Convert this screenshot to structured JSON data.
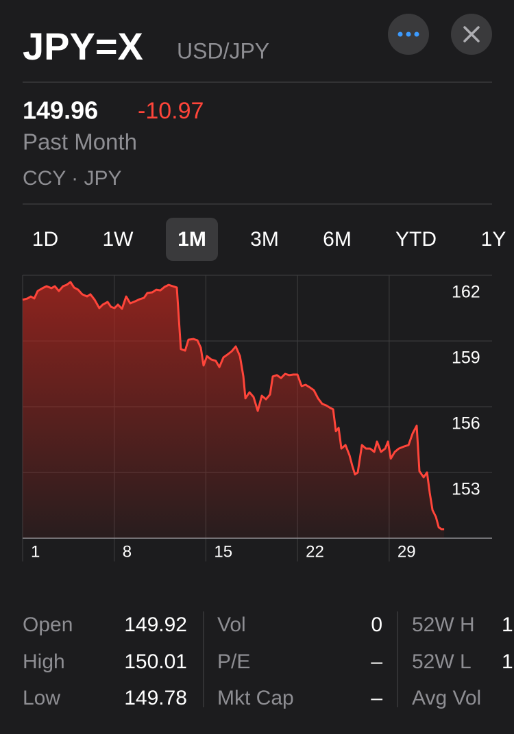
{
  "header": {
    "symbol": "JPY=X",
    "name": "USD/JPY",
    "price": "149.96",
    "change": "-10.97",
    "period": "Past Month",
    "exchange": "CCY · JPY"
  },
  "tabs": [
    {
      "label": "1D"
    },
    {
      "label": "1W"
    },
    {
      "label": "1M",
      "selected": true
    },
    {
      "label": "3M"
    },
    {
      "label": "6M"
    },
    {
      "label": "YTD"
    },
    {
      "label": "1Y"
    }
  ],
  "chart_data": {
    "type": "line",
    "color": "#ff453a",
    "grid": true,
    "xlim": [
      1,
      36.86
    ],
    "xticks": [
      1,
      8,
      15,
      22,
      29
    ],
    "ylim": [
      150,
      162
    ],
    "yticks": [
      153,
      156,
      159,
      162
    ],
    "x": [
      1.0,
      1.37,
      1.63,
      1.89,
      2.15,
      2.52,
      2.83,
      3.2,
      3.46,
      3.77,
      4.09,
      4.35,
      4.66,
      4.93,
      5.24,
      5.55,
      5.92,
      6.18,
      6.5,
      6.86,
      7.12,
      7.49,
      7.75,
      8.02,
      8.28,
      8.59,
      8.91,
      9.22,
      9.59,
      9.95,
      10.27,
      10.53,
      10.9,
      11.21,
      11.52,
      11.84,
      12.15,
      12.47,
      12.78,
      13.09,
      13.41,
      13.67,
      14.04,
      14.35,
      14.61,
      14.82,
      15.08,
      15.4,
      15.76,
      16.03,
      16.34,
      16.65,
      16.97,
      17.28,
      17.6,
      17.86,
      18.02,
      18.33,
      18.64,
      18.96,
      19.27,
      19.59,
      19.9,
      20.11,
      20.42,
      20.74,
      21.05,
      21.37,
      21.68,
      21.99,
      22.31,
      22.62,
      22.94,
      23.25,
      23.57,
      23.88,
      24.19,
      24.51,
      24.72,
      24.93,
      25.14,
      25.35,
      25.66,
      25.97,
      26.18,
      26.39,
      26.6,
      26.92,
      27.23,
      27.54,
      27.86,
      28.07,
      28.38,
      28.7,
      28.91,
      29.12,
      29.43,
      29.74,
      30.16,
      30.48,
      30.79,
      31.1,
      31.31,
      31.63,
      31.89,
      32.1,
      32.31,
      32.57,
      32.78,
      32.99,
      33.2
    ],
    "values": [
      160.88,
      160.94,
      161.03,
      160.94,
      161.28,
      161.41,
      161.5,
      161.41,
      161.5,
      161.28,
      161.5,
      161.56,
      161.69,
      161.44,
      161.34,
      161.13,
      161.03,
      161.13,
      160.88,
      160.5,
      160.66,
      160.78,
      160.56,
      160.5,
      160.66,
      160.47,
      161.03,
      160.72,
      160.81,
      160.91,
      160.97,
      161.19,
      161.22,
      161.34,
      161.31,
      161.47,
      161.56,
      161.5,
      161.44,
      158.63,
      158.56,
      159.06,
      159.09,
      159.03,
      158.69,
      157.88,
      158.31,
      158.16,
      158.09,
      157.81,
      158.25,
      158.38,
      158.53,
      158.75,
      158.31,
      157.38,
      156.38,
      156.66,
      156.44,
      155.81,
      156.5,
      156.34,
      156.56,
      157.38,
      157.44,
      157.31,
      157.5,
      157.44,
      157.47,
      157.47,
      156.94,
      157.0,
      156.88,
      156.75,
      156.38,
      156.13,
      156.06,
      155.94,
      155.88,
      154.88,
      155.03,
      154.09,
      154.25,
      153.78,
      153.31,
      152.91,
      153.0,
      154.25,
      154.09,
      154.09,
      153.94,
      154.41,
      153.94,
      154.09,
      154.41,
      153.63,
      153.94,
      154.09,
      154.19,
      154.25,
      154.78,
      155.13,
      153.06,
      152.78,
      153.0,
      152.06,
      151.28,
      150.97,
      150.5,
      150.41,
      150.41
    ]
  },
  "stats": {
    "columns": [
      [
        {
          "label": "Open",
          "value": "149.92"
        },
        {
          "label": "High",
          "value": "150.01"
        },
        {
          "label": "Low",
          "value": "149.78"
        }
      ],
      [
        {
          "label": "Vol",
          "value": "0"
        },
        {
          "label": "P/E",
          "value": "–"
        },
        {
          "label": "Mkt Cap",
          "value": "–"
        }
      ],
      [
        {
          "label": "52W H",
          "value": "1"
        },
        {
          "label": "52W L",
          "value": "1"
        },
        {
          "label": "Avg Vol"
        }
      ]
    ]
  }
}
